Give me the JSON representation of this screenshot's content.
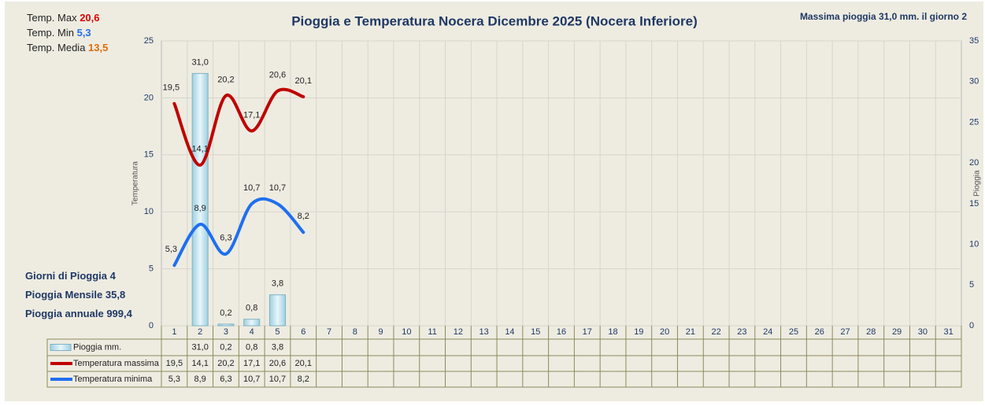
{
  "chart_data": {
    "type": "bar-line",
    "title": "Pioggia e Temperatura Nocera Dicembre 2025 (Nocera Inferiore)",
    "subtitle": "Massima pioggia  31,0 mm. il giorno 2",
    "y_label": "Temperatura",
    "y2_label": "Pioggia",
    "categories": [
      "1",
      "2",
      "3",
      "4",
      "5",
      "6",
      "7",
      "8",
      "9",
      "10",
      "11",
      "12",
      "13",
      "14",
      "15",
      "16",
      "17",
      "18",
      "19",
      "20",
      "21",
      "22",
      "23",
      "24",
      "25",
      "26",
      "27",
      "28",
      "29",
      "30",
      "31"
    ],
    "ylim": [
      0,
      25
    ],
    "yticks": [
      0,
      5,
      10,
      15,
      20,
      25
    ],
    "y2lim": [
      0,
      35
    ],
    "y2ticks": [
      0,
      5,
      10,
      15,
      20,
      25,
      30,
      35
    ],
    "grid": true,
    "series": [
      {
        "name": "Pioggia mm.",
        "kind": "bar",
        "axis": "y2",
        "color": "#bfe4f0",
        "values": [
          null,
          31.0,
          0.2,
          0.8,
          3.8,
          null,
          null,
          null,
          null,
          null,
          null,
          null,
          null,
          null,
          null,
          null,
          null,
          null,
          null,
          null,
          null,
          null,
          null,
          null,
          null,
          null,
          null,
          null,
          null,
          null,
          null
        ],
        "value_labels": [
          null,
          "31,0",
          "0,2",
          "0,8",
          "3,8",
          null,
          null,
          null,
          null,
          null,
          null,
          null,
          null,
          null,
          null,
          null,
          null,
          null,
          null,
          null,
          null,
          null,
          null,
          null,
          null,
          null,
          null,
          null,
          null,
          null,
          null
        ]
      },
      {
        "name": "Temperatura massima",
        "kind": "line",
        "color": "#c00000",
        "values": [
          19.5,
          14.1,
          20.2,
          17.1,
          20.6,
          20.1,
          null,
          null,
          null,
          null,
          null,
          null,
          null,
          null,
          null,
          null,
          null,
          null,
          null,
          null,
          null,
          null,
          null,
          null,
          null,
          null,
          null,
          null,
          null,
          null,
          null
        ],
        "value_labels": [
          "19,5",
          "14,1",
          "20,2",
          "17,1",
          "20,6",
          "20,1",
          null,
          null,
          null,
          null,
          null,
          null,
          null,
          null,
          null,
          null,
          null,
          null,
          null,
          null,
          null,
          null,
          null,
          null,
          null,
          null,
          null,
          null,
          null,
          null,
          null
        ]
      },
      {
        "name": "Temperatura minima",
        "kind": "line",
        "color": "#1f6ff0",
        "values": [
          5.3,
          8.9,
          6.3,
          10.7,
          10.7,
          8.2,
          null,
          null,
          null,
          null,
          null,
          null,
          null,
          null,
          null,
          null,
          null,
          null,
          null,
          null,
          null,
          null,
          null,
          null,
          null,
          null,
          null,
          null,
          null,
          null,
          null
        ],
        "value_labels": [
          "5,3",
          "8,9",
          "6,3",
          "10,7",
          "10,7",
          "8,2",
          null,
          null,
          null,
          null,
          null,
          null,
          null,
          null,
          null,
          null,
          null,
          null,
          null,
          null,
          null,
          null,
          null,
          null,
          null,
          null,
          null,
          null,
          null,
          null,
          null
        ]
      }
    ],
    "annotations_top": [
      {
        "label": "Temp. Max",
        "value": "20,6",
        "color": "#e00000"
      },
      {
        "label": "Temp.  Min",
        "value": "5,3",
        "color": "#1f6ff0"
      },
      {
        "label": "Temp. Media",
        "value": "13,5",
        "color": "#e36c09"
      }
    ],
    "annotations_bottom": [
      {
        "label": "Giorni di Pioggia",
        "value": "4"
      },
      {
        "label": "Pioggia Mensile",
        "value": "35,8"
      },
      {
        "label": "Pioggia annuale",
        "value": "999,4"
      }
    ]
  }
}
